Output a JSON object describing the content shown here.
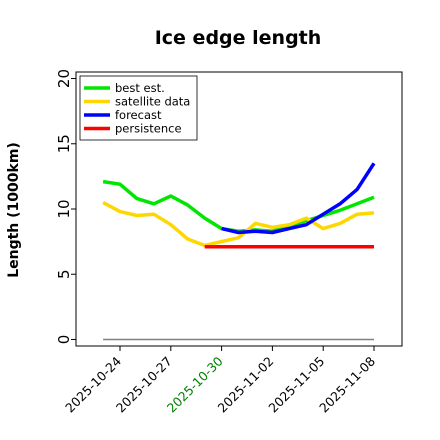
{
  "chart_data": {
    "type": "line",
    "title": "Ice edge length",
    "xlabel": "",
    "ylabel": "Length (1000km)",
    "ylim": [
      -0.5,
      20.5
    ],
    "xlim": [
      "2025-10-21",
      "2025-11-08"
    ],
    "yticks": [
      0,
      5,
      10,
      15,
      20
    ],
    "xticks": [
      "2025-10-24",
      "2025-10-27",
      "2025-10-30",
      "2025-11-02",
      "2025-11-05",
      "2025-11-08"
    ],
    "highlighted_xtick": "2025-10-30",
    "highlight_color": "#008000",
    "grid": false,
    "legend_position": "top-left",
    "baseline": {
      "y": 0,
      "color": "#808080"
    },
    "series": [
      {
        "name": "best est.",
        "color": "#00e600",
        "points": [
          [
            "2025-10-23",
            12.1
          ],
          [
            "2025-10-24",
            11.9
          ],
          [
            "2025-10-25",
            10.8
          ],
          [
            "2025-10-26",
            10.4
          ],
          [
            "2025-10-27",
            11.0
          ],
          [
            "2025-10-28",
            10.3
          ],
          [
            "2025-10-29",
            9.3
          ],
          [
            "2025-10-30",
            8.5
          ],
          [
            "2025-10-31",
            8.3
          ],
          [
            "2025-11-01",
            8.4
          ],
          [
            "2025-11-02",
            8.3
          ],
          [
            "2025-11-03",
            8.7
          ],
          [
            "2025-11-04",
            9.1
          ],
          [
            "2025-11-05",
            9.5
          ],
          [
            "2025-11-06",
            9.9
          ],
          [
            "2025-11-07",
            10.4
          ],
          [
            "2025-11-08",
            10.9
          ]
        ]
      },
      {
        "name": "satellite data",
        "color": "#ffd700",
        "points": [
          [
            "2025-10-23",
            10.5
          ],
          [
            "2025-10-24",
            9.8
          ],
          [
            "2025-10-25",
            9.5
          ],
          [
            "2025-10-26",
            9.6
          ],
          [
            "2025-10-27",
            8.8
          ],
          [
            "2025-10-28",
            7.7
          ],
          [
            "2025-10-29",
            7.2
          ],
          [
            "2025-10-30",
            7.5
          ],
          [
            "2025-10-31",
            7.8
          ],
          [
            "2025-11-01",
            8.9
          ],
          [
            "2025-11-02",
            8.6
          ],
          [
            "2025-11-03",
            8.8
          ],
          [
            "2025-11-04",
            9.3
          ],
          [
            "2025-11-05",
            8.5
          ],
          [
            "2025-11-06",
            8.9
          ],
          [
            "2025-11-07",
            9.6
          ],
          [
            "2025-11-08",
            9.7
          ]
        ]
      },
      {
        "name": "forecast",
        "color": "#0000ff",
        "points": [
          [
            "2025-10-30",
            8.5
          ],
          [
            "2025-10-31",
            8.2
          ],
          [
            "2025-11-01",
            8.3
          ],
          [
            "2025-11-02",
            8.2
          ],
          [
            "2025-11-03",
            8.5
          ],
          [
            "2025-11-04",
            8.8
          ],
          [
            "2025-11-05",
            9.6
          ],
          [
            "2025-11-06",
            10.4
          ],
          [
            "2025-11-07",
            11.5
          ],
          [
            "2025-11-08",
            13.5
          ]
        ]
      },
      {
        "name": "persistence",
        "color": "#ff0000",
        "points": [
          [
            "2025-10-29",
            7.1
          ],
          [
            "2025-11-08",
            7.1
          ]
        ]
      }
    ]
  }
}
